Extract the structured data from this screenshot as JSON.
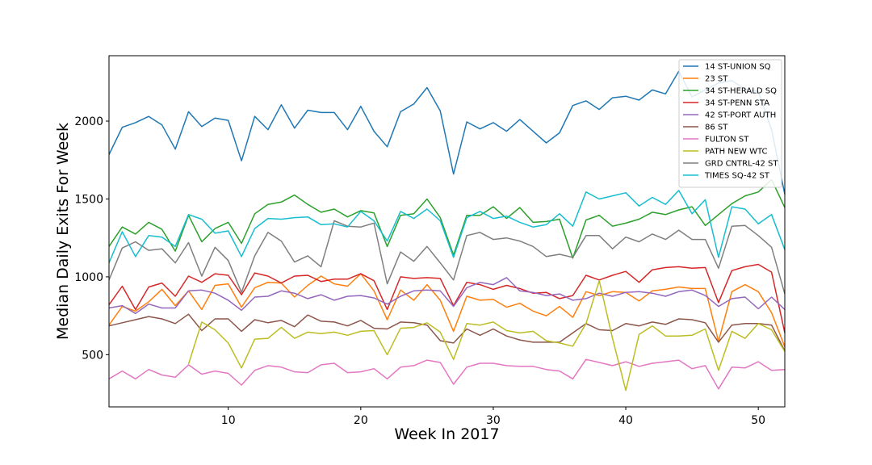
{
  "chart_data": {
    "type": "line",
    "title": "",
    "xlabel": "Week In 2017",
    "ylabel": "Median Daily Exits For Week",
    "xlim": [
      1,
      52
    ],
    "ylim": [
      165,
      2420
    ],
    "xticks": [
      10,
      20,
      30,
      40,
      50
    ],
    "yticks": [
      500,
      1000,
      1500,
      2000
    ],
    "grid": false,
    "legend_position": "top-right",
    "x": [
      1,
      2,
      3,
      4,
      5,
      6,
      7,
      8,
      9,
      10,
      11,
      12,
      13,
      14,
      15,
      16,
      17,
      18,
      19,
      20,
      21,
      22,
      23,
      24,
      25,
      26,
      27,
      28,
      29,
      30,
      31,
      32,
      33,
      34,
      35,
      36,
      37,
      38,
      39,
      40,
      41,
      42,
      43,
      44,
      45,
      46,
      47,
      48,
      49,
      50,
      51,
      52
    ],
    "series": [
      {
        "name": "14 ST-UNION SQ",
        "color": "#1f77b4",
        "values": [
          1785,
          1960,
          1990,
          2030,
          1975,
          1820,
          2060,
          1965,
          2020,
          2005,
          1745,
          2030,
          1945,
          2105,
          1955,
          2070,
          2055,
          2055,
          1945,
          2095,
          1935,
          1835,
          2060,
          2110,
          2215,
          2065,
          1660,
          1995,
          1950,
          1990,
          1935,
          2010,
          1935,
          1860,
          1925,
          2100,
          2130,
          2075,
          2150,
          2160,
          2135,
          2200,
          2175,
          2320,
          2155,
          2200,
          2245,
          2260,
          2205,
          2190,
          1945,
          1530
        ]
      },
      {
        "name": "23 ST",
        "color": "#ff7f0e",
        "values": [
          690,
          810,
          780,
          840,
          920,
          815,
          910,
          790,
          945,
          955,
          805,
          930,
          965,
          960,
          870,
          945,
          1005,
          955,
          940,
          1020,
          910,
          725,
          915,
          850,
          950,
          850,
          650,
          875,
          850,
          855,
          805,
          830,
          780,
          750,
          810,
          740,
          905,
          880,
          905,
          900,
          845,
          910,
          920,
          935,
          925,
          925,
          585,
          905,
          950,
          905,
          770,
          550
        ]
      },
      {
        "name": "34 ST-HERALD SQ",
        "color": "#2ca02c",
        "values": [
          1195,
          1320,
          1275,
          1350,
          1305,
          1165,
          1395,
          1225,
          1310,
          1350,
          1215,
          1405,
          1465,
          1480,
          1525,
          1465,
          1415,
          1435,
          1385,
          1425,
          1410,
          1195,
          1395,
          1405,
          1500,
          1380,
          1140,
          1395,
          1395,
          1450,
          1375,
          1445,
          1350,
          1355,
          1370,
          1120,
          1365,
          1395,
          1325,
          1345,
          1370,
          1415,
          1400,
          1430,
          1450,
          1330,
          1400,
          1470,
          1520,
          1545,
          1625,
          1445
        ]
      },
      {
        "name": "34 ST-PENN STA",
        "color": "#d62728",
        "values": [
          820,
          940,
          790,
          935,
          960,
          875,
          1005,
          965,
          1020,
          1010,
          885,
          1025,
          1005,
          960,
          1005,
          1010,
          970,
          985,
          985,
          1020,
          975,
          790,
          1000,
          990,
          995,
          990,
          815,
          965,
          950,
          920,
          945,
          925,
          895,
          900,
          860,
          880,
          1010,
          980,
          1010,
          1035,
          965,
          1045,
          1060,
          1065,
          1055,
          1060,
          835,
          1040,
          1065,
          1080,
          1030,
          640
        ]
      },
      {
        "name": "42 ST-PORT AUTH",
        "color": "#9467bd",
        "values": [
          800,
          815,
          765,
          825,
          800,
          800,
          910,
          915,
          895,
          850,
          785,
          870,
          875,
          910,
          895,
          860,
          885,
          850,
          875,
          880,
          865,
          825,
          875,
          910,
          915,
          910,
          810,
          930,
          965,
          950,
          995,
          910,
          900,
          880,
          890,
          850,
          860,
          895,
          875,
          900,
          905,
          895,
          875,
          905,
          915,
          880,
          810,
          860,
          870,
          795,
          870,
          790
        ]
      },
      {
        "name": "86 ST",
        "color": "#8c564b",
        "values": [
          685,
          705,
          725,
          745,
          730,
          700,
          760,
          655,
          730,
          730,
          650,
          725,
          705,
          720,
          680,
          755,
          715,
          710,
          685,
          720,
          670,
          665,
          710,
          705,
          690,
          590,
          575,
          665,
          625,
          665,
          620,
          595,
          580,
          580,
          580,
          640,
          700,
          660,
          655,
          700,
          685,
          710,
          695,
          730,
          725,
          705,
          580,
          690,
          700,
          700,
          690,
          525
        ]
      },
      {
        "name": "FULTON ST",
        "color": "#e377c2",
        "values": [
          345,
          395,
          345,
          405,
          370,
          355,
          435,
          375,
          395,
          380,
          305,
          400,
          430,
          420,
          390,
          385,
          435,
          445,
          385,
          390,
          410,
          345,
          420,
          430,
          465,
          450,
          310,
          420,
          445,
          445,
          430,
          425,
          425,
          405,
          395,
          345,
          470,
          450,
          430,
          455,
          425,
          445,
          455,
          465,
          410,
          430,
          280,
          420,
          415,
          455,
          400,
          405
        ]
      },
      {
        "name": "PATH NEW WTC",
        "color": "#bcbd22",
        "values": [
          null,
          null,
          null,
          null,
          null,
          null,
          440,
          710,
          660,
          575,
          415,
          600,
          605,
          675,
          605,
          645,
          635,
          645,
          625,
          650,
          655,
          500,
          670,
          675,
          705,
          645,
          470,
          700,
          690,
          710,
          655,
          640,
          650,
          590,
          575,
          555,
          700,
          975,
          605,
          270,
          630,
          685,
          620,
          620,
          625,
          665,
          400,
          650,
          605,
          700,
          660,
          520
        ]
      },
      {
        "name": "GRD CNTRL-42 ST",
        "color": "#7f7f7f",
        "values": [
          980,
          1185,
          1225,
          1170,
          1180,
          1090,
          1220,
          1005,
          1190,
          1105,
          900,
          1135,
          1285,
          1230,
          1095,
          1135,
          1065,
          1360,
          1325,
          1320,
          1345,
          955,
          1160,
          1100,
          1195,
          1090,
          980,
          1265,
          1285,
          1240,
          1250,
          1230,
          1195,
          1130,
          1145,
          1125,
          1265,
          1265,
          1180,
          1255,
          1225,
          1275,
          1240,
          1300,
          1240,
          1240,
          1055,
          1325,
          1330,
          1265,
          1190,
          890
        ]
      },
      {
        "name": "TIMES SQ-42 ST",
        "color": "#17becf",
        "values": [
          1090,
          1290,
          1130,
          1265,
          1255,
          1195,
          1400,
          1370,
          1280,
          1295,
          1130,
          1310,
          1375,
          1370,
          1380,
          1385,
          1335,
          1340,
          1320,
          1420,
          1360,
          1230,
          1420,
          1375,
          1435,
          1360,
          1125,
          1380,
          1420,
          1375,
          1390,
          1350,
          1320,
          1335,
          1405,
          1325,
          1545,
          1500,
          1520,
          1540,
          1455,
          1510,
          1465,
          1555,
          1405,
          1495,
          1125,
          1450,
          1435,
          1340,
          1400,
          1175
        ]
      }
    ]
  }
}
